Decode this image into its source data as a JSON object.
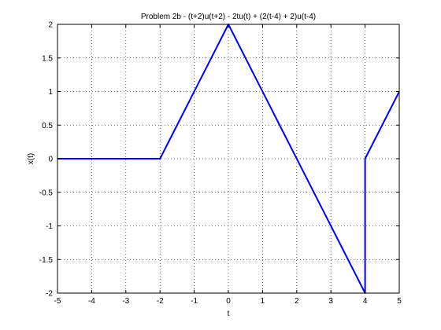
{
  "chart_data": {
    "type": "line",
    "title": "Problem 2b - (t+2)u(t+2) - 2tu(t) + (2(t-4) + 2)u(t-4)",
    "xlabel": "t",
    "ylabel": "x(t)",
    "xlim": [
      -5,
      5
    ],
    "ylim": [
      -2,
      2
    ],
    "grid": true,
    "x_ticks": [
      "-5",
      "-4",
      "-3",
      "-2",
      "-1",
      "0",
      "1",
      "2",
      "3",
      "4",
      "5"
    ],
    "y_ticks": [
      "-2",
      "-1.5",
      "-1",
      "-0.5",
      "0",
      "0.5",
      "1",
      "1.5",
      "2"
    ],
    "line_color": "#0000ff",
    "series": [
      {
        "x": [
          -5,
          -2,
          0,
          4,
          4,
          5
        ],
        "y": [
          0,
          0,
          2,
          -2,
          0,
          1
        ]
      }
    ]
  }
}
